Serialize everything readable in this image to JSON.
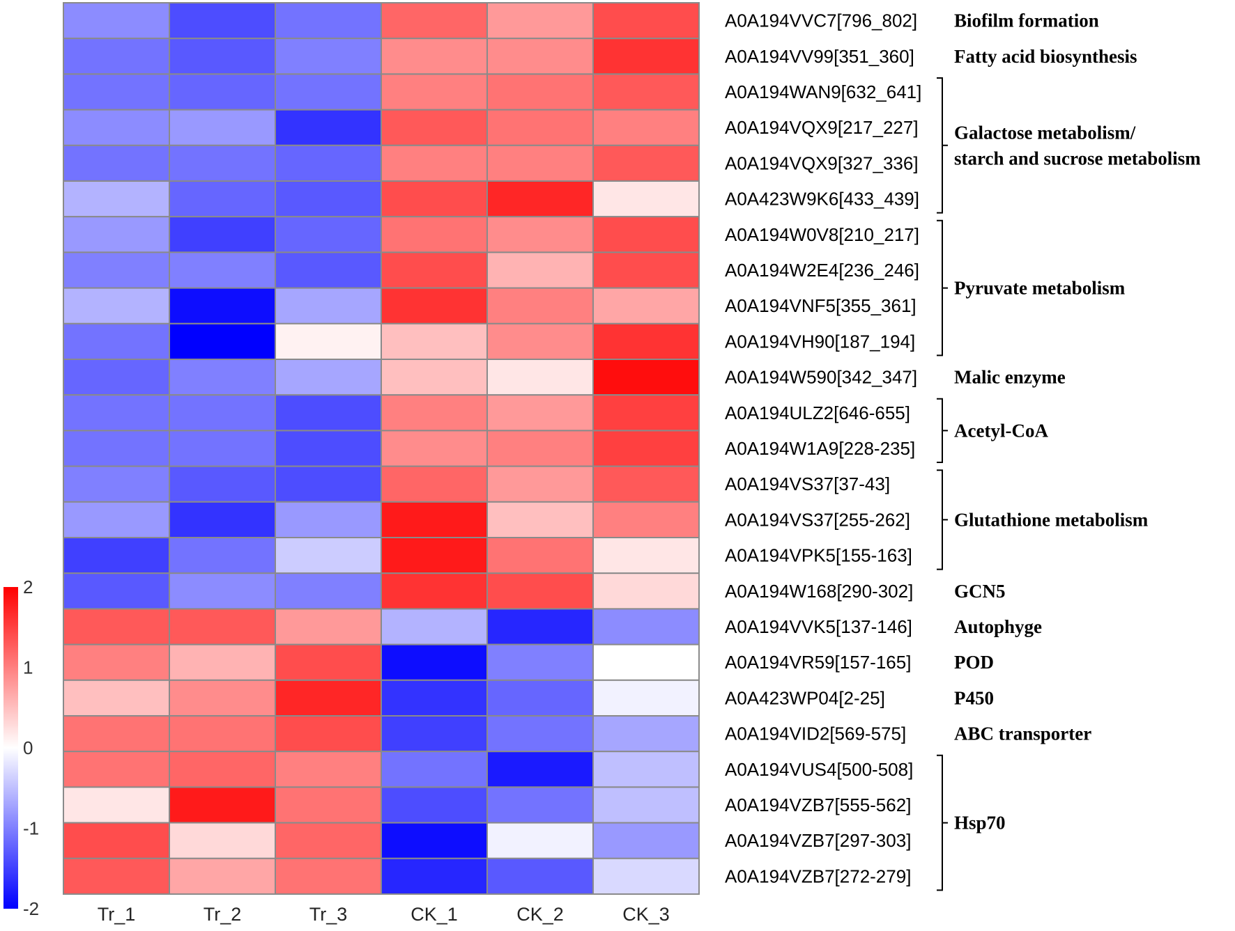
{
  "chart_data": {
    "type": "heatmap",
    "title": "",
    "columns": [
      "Tr_1",
      "Tr_2",
      "Tr_3",
      "CK_1",
      "CK_2",
      "CK_3"
    ],
    "rows": [
      "A0A194VVC7[796_802]",
      "A0A194VV99[351_360]",
      "A0A194WAN9[632_641]",
      "A0A194VQX9[217_227]",
      "A0A194VQX9[327_336]",
      "A0A423W9K6[433_439]",
      "A0A194W0V8[210_217]",
      "A0A194W2E4[236_246]",
      "A0A194VNF5[355_361]",
      "A0A194VH90[187_194]",
      "A0A194W590[342_347]",
      "A0A194ULZ2[646-655]",
      "A0A194W1A9[228-235]",
      "A0A194VS37[37-43]",
      "A0A194VS37[255-262]",
      "A0A194VPK5[155-163]",
      "A0A194W168[290-302]",
      "A0A194VVK5[137-146]",
      "A0A194VR59[157-165]",
      "A0A423WP04[2-25]",
      "A0A194VID2[569-575]",
      "A0A194VUS4[500-508]",
      "A0A194VZB7[555-562]",
      "A0A194VZB7[297-303]",
      "A0A194VZB7[272-279]"
    ],
    "values": [
      [
        -0.9,
        -1.4,
        -1.1,
        1.2,
        0.8,
        1.4
      ],
      [
        -1.1,
        -1.3,
        -1.0,
        0.9,
        0.9,
        1.6
      ],
      [
        -1.1,
        -1.2,
        -1.1,
        1.0,
        1.1,
        1.3
      ],
      [
        -0.9,
        -0.8,
        -1.6,
        1.3,
        1.1,
        1.0
      ],
      [
        -1.1,
        -1.1,
        -1.2,
        1.0,
        1.0,
        1.3
      ],
      [
        -0.6,
        -1.2,
        -1.3,
        1.4,
        1.7,
        0.2
      ],
      [
        -0.8,
        -1.5,
        -1.2,
        1.1,
        0.9,
        1.4
      ],
      [
        -1.0,
        -1.0,
        -1.3,
        1.4,
        0.6,
        1.4
      ],
      [
        -0.6,
        -1.9,
        -0.7,
        1.6,
        1.0,
        0.7
      ],
      [
        -1.1,
        -2.0,
        0.1,
        0.5,
        0.9,
        1.6
      ],
      [
        -1.2,
        -1.0,
        -0.7,
        0.5,
        0.2,
        1.9
      ],
      [
        -1.1,
        -1.1,
        -1.4,
        1.0,
        0.8,
        1.5
      ],
      [
        -1.1,
        -1.1,
        -1.4,
        0.9,
        1.0,
        1.5
      ],
      [
        -1.0,
        -1.3,
        -1.4,
        1.2,
        0.8,
        1.3
      ],
      [
        -0.8,
        -1.6,
        -0.8,
        1.8,
        0.5,
        1.0
      ],
      [
        -1.5,
        -1.1,
        -0.4,
        1.8,
        1.1,
        0.2
      ],
      [
        -1.3,
        -0.9,
        -1.0,
        1.6,
        1.4,
        0.3
      ],
      [
        1.3,
        1.3,
        0.8,
        -0.6,
        -1.7,
        -0.9
      ],
      [
        1.0,
        0.6,
        1.4,
        -1.9,
        -1.0,
        0.0
      ],
      [
        0.5,
        0.9,
        1.7,
        -1.6,
        -1.2,
        -0.1
      ],
      [
        1.1,
        1.1,
        1.4,
        -1.5,
        -1.1,
        -0.7
      ],
      [
        1.1,
        1.2,
        1.0,
        -1.1,
        -1.8,
        -0.5
      ],
      [
        0.2,
        1.8,
        1.1,
        -1.4,
        -1.1,
        -0.5
      ],
      [
        1.4,
        0.3,
        1.2,
        -1.9,
        -0.1,
        -0.8
      ],
      [
        1.3,
        0.7,
        1.1,
        -1.7,
        -1.3,
        -0.3
      ]
    ],
    "color_scale": {
      "min": -2,
      "max": 2,
      "low_color": "#0000ff",
      "mid_color": "#ffffff",
      "high_color": "#ff0000",
      "ticks": [
        "2",
        "1",
        "0",
        "-1",
        "-2"
      ],
      "tick_values": [
        2,
        1,
        0,
        -1,
        -2
      ]
    },
    "groups": [
      {
        "label": [
          "Biofilm formation"
        ],
        "start": 0,
        "end": 0,
        "bracket": false
      },
      {
        "label": [
          "Fatty acid biosynthesis"
        ],
        "start": 1,
        "end": 1,
        "bracket": false
      },
      {
        "label": [
          "Galactose metabolism/",
          "starch and sucrose metabolism"
        ],
        "start": 2,
        "end": 5,
        "bracket": true
      },
      {
        "label": [
          "Pyruvate metabolism"
        ],
        "start": 6,
        "end": 9,
        "bracket": true
      },
      {
        "label": [
          "Malic enzyme"
        ],
        "start": 10,
        "end": 10,
        "bracket": false
      },
      {
        "label": [
          "Acetyl-CoA"
        ],
        "start": 11,
        "end": 12,
        "bracket": true
      },
      {
        "label": [
          "Glutathione metabolism"
        ],
        "start": 13,
        "end": 15,
        "bracket": true
      },
      {
        "label": [
          "GCN5"
        ],
        "start": 16,
        "end": 16,
        "bracket": false
      },
      {
        "label": [
          "Autophyge"
        ],
        "start": 17,
        "end": 17,
        "bracket": false
      },
      {
        "label": [
          "POD"
        ],
        "start": 18,
        "end": 18,
        "bracket": false
      },
      {
        "label": [
          "P450"
        ],
        "start": 19,
        "end": 19,
        "bracket": false
      },
      {
        "label": [
          "ABC transporter"
        ],
        "start": 20,
        "end": 20,
        "bracket": false
      },
      {
        "label": [
          "Hsp70"
        ],
        "start": 21,
        "end": 24,
        "bracket": true
      }
    ]
  }
}
